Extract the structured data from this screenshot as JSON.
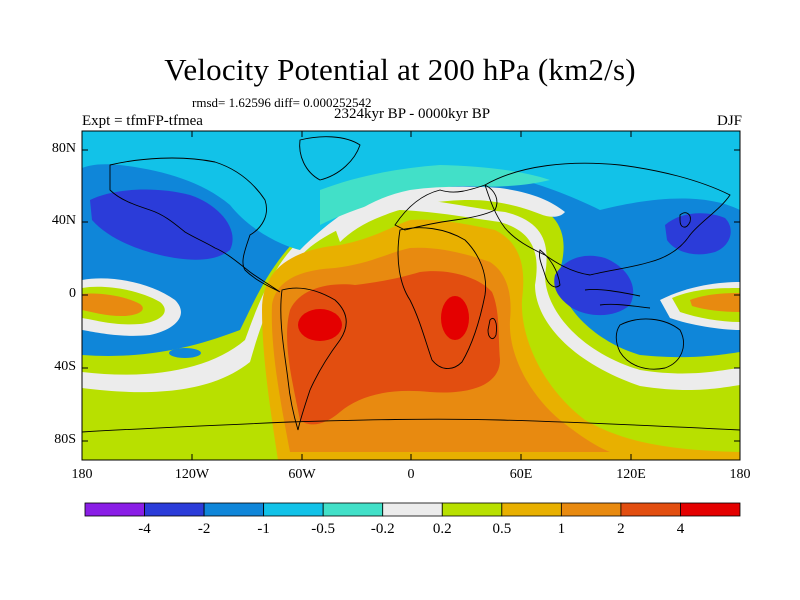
{
  "title": "Velocity Potential at 200 hPa (km2/s)",
  "stats": "rmsd= 1.62596 diff= 0.000252542",
  "experiment": "Expt = tfmFP-tfmea",
  "period": "2324kyr BP - 0000kyr BP",
  "season": "DJF",
  "map": {
    "lon_range": [
      -180,
      180
    ],
    "lat_range": [
      -90,
      90
    ],
    "y_ticks": [
      "80N",
      "40N",
      "0",
      "40S",
      "80S"
    ],
    "x_ticks": [
      "180",
      "120W",
      "60W",
      "0",
      "60E",
      "120E",
      "180"
    ]
  },
  "colorbar": {
    "colors": [
      "#8a1ee6",
      "#2b3cd9",
      "#0f86d9",
      "#12c2e8",
      "#42e0c8",
      "#ececec",
      "#b8e000",
      "#e8b000",
      "#e88a10",
      "#e24e10",
      "#e40000"
    ],
    "labels": [
      "-4",
      "-2",
      "-1",
      "-0.5",
      "-0.2",
      "0.2",
      "0.5",
      "1",
      "2",
      "4"
    ]
  }
}
